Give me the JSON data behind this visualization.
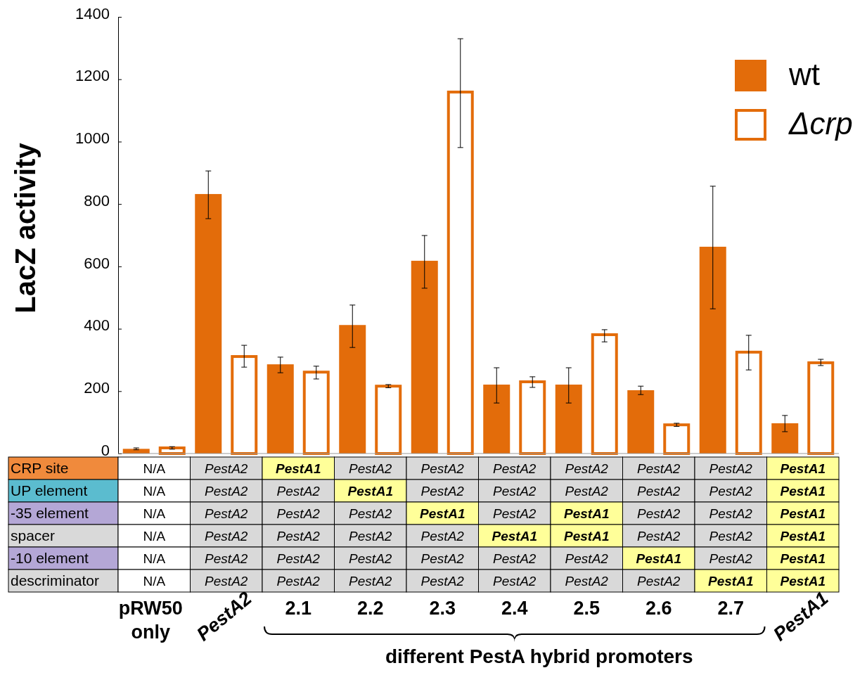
{
  "chart_data": [
    {
      "type": "bar",
      "ylabel": "LacZ activity",
      "categories": [
        null,
        null,
        null,
        null,
        null,
        null,
        null,
        null,
        null,
        null
      ],
      "series": [
        {
          "name": "wt",
          "color": "#e36c0a",
          "values": [
            15,
            832,
            286,
            412,
            618,
            221,
            221,
            203,
            663,
            97
          ],
          "errors": [
            [
              12,
              18
            ],
            [
              753,
              906
            ],
            [
              259,
              309
            ],
            [
              340,
              476
            ],
            [
              530,
              699
            ],
            [
              162,
              275
            ],
            [
              162,
              275
            ],
            [
              189,
              216
            ],
            [
              464,
              857
            ],
            [
              70,
              122
            ]
          ]
        },
        {
          "name": "Δcrp",
          "color": "#ffffff",
          "values": [
            18,
            311,
            261,
            216,
            1159,
            230,
            381,
            92,
            325,
            291
          ],
          "errors": [
            [
              14,
              22
            ],
            [
              277,
              347
            ],
            [
              239,
              280
            ],
            [
              211,
              221
            ],
            [
              981,
              1330
            ],
            [
              212,
              246
            ],
            [
              358,
              397
            ],
            [
              87,
              97
            ],
            [
              268,
              379
            ],
            [
              282,
              302
            ]
          ]
        }
      ],
      "ylim": [
        0,
        1400
      ],
      "yticks": [
        0,
        200,
        400,
        600,
        800,
        1000,
        1200,
        1400
      ],
      "legend": "top right"
    },
    {
      "type": "heatmap",
      "categories": [
        "pRW50 only",
        "PestA2",
        "2.1",
        "2.2",
        "2.3",
        "2.4",
        "2.5",
        "2.6",
        "2.7",
        "PestA1"
      ],
      "y_categories": [
        "CRP site",
        "UP element",
        "-35 element",
        "spacer",
        "-10 element",
        "descriminator"
      ],
      "colors": [
        "#f08a3c",
        "#5bbccf",
        "#b4a7d6",
        "#d9d9d9",
        "#b4a7d6",
        "#d9d9d9",
        "#ffff99",
        "#d9d9d9"
      ],
      "cells": [
        [
          null,
          null,
          null,
          null,
          null,
          null,
          null,
          null,
          null,
          null
        ],
        [
          null,
          null,
          null,
          null,
          null,
          null,
          null,
          null,
          null,
          null
        ],
        [
          null,
          null,
          null,
          null,
          null,
          null,
          null,
          null,
          null,
          null
        ],
        [
          null,
          null,
          null,
          null,
          null,
          null,
          null,
          null,
          null,
          null
        ],
        [
          null,
          null,
          null,
          null,
          null,
          null,
          null,
          null,
          null,
          null
        ],
        [
          null,
          null,
          null,
          null,
          null,
          null,
          null,
          null,
          null,
          null
        ]
      ],
      "cell_labels": [
        [
          "N/A",
          "PestA2",
          "PestA1",
          "PestA2",
          "PestA2",
          "PestA2",
          "PestA2",
          "PestA2",
          "PestA2",
          "PestA1"
        ],
        [
          "N/A",
          "PestA2",
          "PestA2",
          "PestA1",
          "PestA2",
          "PestA2",
          "PestA2",
          "PestA2",
          "PestA2",
          "PestA1"
        ],
        [
          "N/A",
          "PestA2",
          "PestA2",
          "PestA2",
          "PestA1",
          "PestA2",
          "PestA1",
          "PestA2",
          "PestA2",
          "PestA1"
        ],
        [
          "N/A",
          "PestA2",
          "PestA2",
          "PestA2",
          "PestA2",
          "PestA1",
          "PestA1",
          "PestA2",
          "PestA2",
          "PestA1"
        ],
        [
          "N/A",
          "PestA2",
          "PestA2",
          "PestA2",
          "PestA2",
          "PestA2",
          "PestA2",
          "PestA1",
          "PestA2",
          "PestA1"
        ],
        [
          "N/A",
          "PestA2",
          "PestA2",
          "PestA2",
          "PestA2",
          "PestA2",
          "PestA2",
          "PestA2",
          "PestA1",
          "PestA1"
        ]
      ],
      "annotations": [
        "different PestA hybrid promoters"
      ]
    }
  ]
}
